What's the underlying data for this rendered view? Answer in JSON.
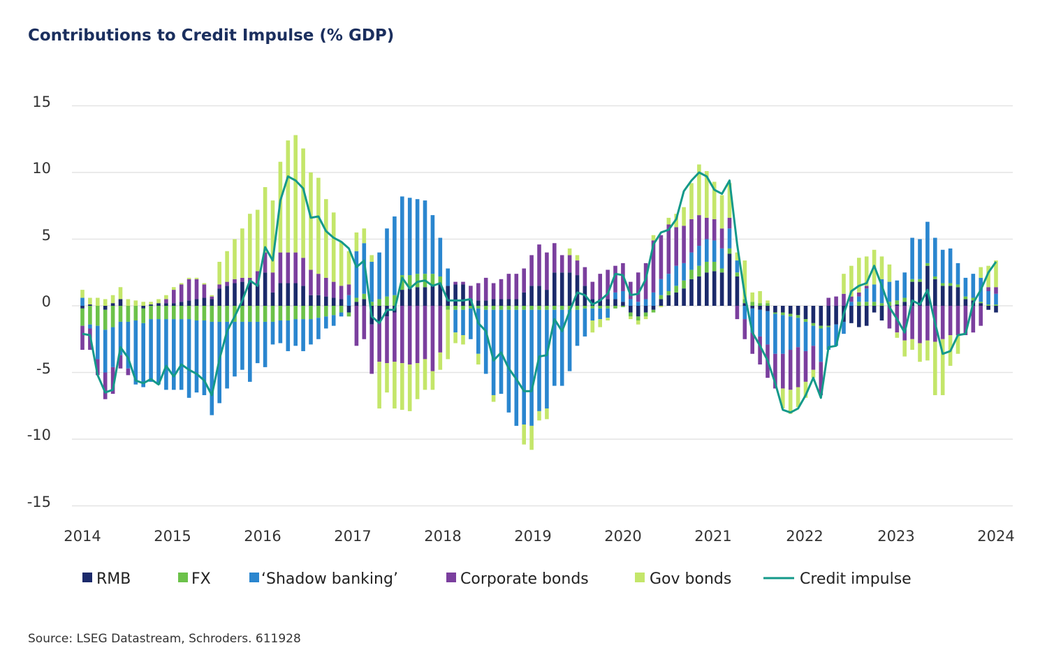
{
  "chart_data": {
    "type": "bar",
    "stacked": true,
    "title": "Contributions to Credit Impulse (% GDP)",
    "xlabel": "",
    "ylabel": "",
    "ylim": [
      -15,
      15
    ],
    "yticks": [
      "15",
      "10",
      "5",
      "0",
      "-5",
      "-10",
      "-15"
    ],
    "ytick_values": [
      15,
      10,
      5,
      0,
      -5,
      -10,
      -15
    ],
    "xticks": [
      "2014",
      "2015",
      "2016",
      "2017",
      "2018",
      "2019",
      "2020",
      "2021",
      "2022",
      "2023",
      "2024"
    ],
    "x_frequency": "monthly, Jan 2014 - Jan 2024",
    "grid": "horizontal",
    "legend_position": "bottom",
    "series": [
      {
        "name": "RMB",
        "kind": "bar",
        "color": "#1b2a6b",
        "values": [
          -0.2,
          0.1,
          0,
          -0.3,
          0.2,
          0.5,
          0,
          0,
          -0.2,
          0.1,
          0.2,
          0.2,
          0.2,
          0.3,
          0.4,
          0.5,
          0.6,
          0.5,
          1.3,
          1.5,
          1.7,
          1.8,
          1.8,
          1.6,
          2.5,
          1.0,
          1.7,
          1.7,
          1.7,
          1.5,
          0.8,
          0.8,
          0.7,
          0.6,
          0.5,
          -0.5,
          0.3,
          0.5,
          -1.4,
          -1.2,
          -0.8,
          -0.5,
          1.2,
          1.3,
          1.4,
          1.4,
          1.5,
          1.6,
          1.5,
          1.6,
          1.6,
          0.5,
          0.4,
          0.4,
          0.5,
          0.5,
          0.5,
          0.5,
          1.0,
          1.5,
          1.5,
          1.2,
          2.5,
          2.5,
          2.5,
          2.3,
          1.5,
          0.5,
          0.5,
          0.5,
          0.5,
          0.3,
          -0.5,
          -0.8,
          -0.5,
          -0.3,
          0.5,
          0.8,
          1.0,
          1.3,
          2.0,
          2.2,
          2.5,
          2.6,
          2.5,
          3.9,
          2.2,
          0.2,
          -0.2,
          -0.3,
          -0.4,
          -0.5,
          -0.5,
          -0.6,
          -0.7,
          -1.0,
          -1.3,
          -1.5,
          -1.5,
          -1.4,
          -1.2,
          -1.3,
          -1.6,
          -1.5,
          -0.5,
          -1.1,
          0,
          0.1,
          0.3,
          1.8,
          1.8,
          3.0,
          2.0,
          1.5,
          1.5,
          1.4,
          0.5,
          0.4,
          0.2,
          -0.3,
          -0.5
        ]
      },
      {
        "name": "FX",
        "kind": "bar",
        "color": "#6cc24a",
        "values": [
          -1.3,
          -1.4,
          -1.5,
          -1.5,
          -1.6,
          -1.2,
          -1.2,
          -1.1,
          -1.1,
          -1.0,
          -1.0,
          -1.0,
          -1.0,
          -1.0,
          -1.0,
          -1.1,
          -1.1,
          -1.2,
          -1.2,
          -1.2,
          -1.2,
          -1.2,
          -1.2,
          -1.2,
          -1.2,
          -1.2,
          -1.1,
          -1.1,
          -1.0,
          -1.0,
          -1.0,
          -0.9,
          -0.8,
          -0.7,
          -0.5,
          -0.3,
          0.3,
          0.4,
          0.3,
          0.5,
          0.7,
          0.8,
          1.1,
          1.0,
          1.0,
          1.0,
          0.9,
          0.6,
          -0.3,
          -0.3,
          -0.3,
          -0.2,
          -0.2,
          -0.3,
          -0.3,
          -0.3,
          -0.3,
          -0.3,
          -0.3,
          -0.3,
          -0.3,
          -0.3,
          -0.3,
          -0.3,
          -0.3,
          -0.3,
          -0.2,
          -0.2,
          -0.2,
          -0.2,
          -0.2,
          -0.1,
          -0.3,
          -0.3,
          -0.3,
          -0.2,
          0.3,
          0.3,
          0.5,
          0.6,
          0.7,
          0.8,
          0.8,
          0.7,
          0.3,
          0.4,
          0.3,
          0.3,
          0.3,
          0.2,
          0.2,
          -0.1,
          -0.2,
          -0.2,
          -0.2,
          -0.2,
          -0.2,
          -0.2,
          -0.1,
          0,
          0,
          0,
          0.3,
          0.3,
          0.3,
          0.2,
          0.3,
          0.3,
          0.3,
          0.2,
          0.2,
          0.2,
          0.2,
          0.2,
          0.2,
          0.2,
          0.2,
          0.2,
          0.1,
          0.1,
          0.1
        ]
      },
      {
        "name": "‘Shadow banking’",
        "kind": "bar",
        "color": "#2a86cf",
        "values": [
          0.6,
          -0.3,
          -2.5,
          -3.2,
          -3.0,
          -2.5,
          -3.5,
          -4.8,
          -4.8,
          -4.7,
          -4.9,
          -5.3,
          -5.3,
          -5.3,
          -5.9,
          -5.4,
          -5.6,
          -7.0,
          -6.1,
          -5.0,
          -4.1,
          -3.6,
          -4.5,
          -3.1,
          -3.4,
          -1.7,
          -1.7,
          -2.3,
          -2.0,
          -2.4,
          -1.9,
          -1.6,
          -0.9,
          -0.8,
          -0.3,
          0.8,
          3.5,
          3.8,
          3.0,
          3.5,
          5.1,
          5.9,
          5.9,
          5.8,
          5.6,
          5.5,
          4.4,
          2.9,
          1.3,
          -1.7,
          -1.9,
          -2.3,
          -3.4,
          -4.8,
          -6.4,
          -6.3,
          -7.7,
          -8.7,
          -8.6,
          -8.7,
          -7.6,
          -7.4,
          -5.7,
          -5.7,
          -4.6,
          -2.7,
          -2.1,
          -0.9,
          -0.8,
          -0.7,
          0.5,
          0.8,
          0.5,
          0.3,
          0.5,
          1.0,
          1.2,
          1.3,
          1.5,
          1.3,
          1.3,
          1.5,
          1.7,
          1.6,
          1.5,
          1.5,
          0.9,
          -1.0,
          -1.8,
          -2.0,
          -2.5,
          -3.0,
          -2.9,
          -2.5,
          -2.2,
          -2.2,
          -1.5,
          -2.5,
          -1.7,
          -1.6,
          -0.9,
          0.3,
          0.4,
          1.0,
          1.3,
          1.8,
          1.5,
          1.5,
          1.9,
          3.1,
          3.0,
          3.1,
          2.9,
          2.5,
          2.6,
          1.6,
          1.4,
          1.8,
          1.8,
          1.0,
          0.8
        ]
      },
      {
        "name": "Corporate bonds",
        "kind": "bar",
        "color": "#7b3f9e",
        "values": [
          -1.8,
          -1.6,
          -1.2,
          -2.0,
          -2.0,
          -1.0,
          -0.5,
          0,
          0,
          0,
          0,
          0.3,
          1.0,
          1.3,
          1.6,
          1.5,
          1.0,
          0.2,
          0.3,
          0.3,
          0.3,
          0.3,
          0.3,
          1.0,
          1.5,
          1.5,
          2.3,
          2.3,
          2.3,
          2.1,
          1.9,
          1.6,
          1.4,
          1.2,
          1.0,
          0.8,
          -3.0,
          -2.5,
          -3.7,
          -3.0,
          -3.5,
          -3.7,
          -4.3,
          -4.4,
          -4.3,
          -4.0,
          -4.9,
          -3.5,
          0,
          0.2,
          0.2,
          1.0,
          1.3,
          1.7,
          1.2,
          1.5,
          1.9,
          1.9,
          1.8,
          2.3,
          3.1,
          2.8,
          2.2,
          1.3,
          1.3,
          1.1,
          1.4,
          1.3,
          1.9,
          2.2,
          2.0,
          2.1,
          1.3,
          2.2,
          2.7,
          3.9,
          3.3,
          3.7,
          2.9,
          2.8,
          2.5,
          2.3,
          1.6,
          1.6,
          1.5,
          0.8,
          -1.0,
          -1.5,
          -1.6,
          -2.1,
          -2.5,
          -2.6,
          -2.6,
          -3.0,
          -3.0,
          -2.3,
          -1.8,
          -2.5,
          0.6,
          0.7,
          0.9,
          0.4,
          0.3,
          0.2,
          0,
          0,
          -1.7,
          -2.0,
          -2.6,
          -2.5,
          -2.8,
          -2.6,
          -2.7,
          -2.5,
          -2.2,
          -2.2,
          -2.2,
          -2.0,
          -1.5,
          0.3,
          0.5
        ]
      },
      {
        "name": "Gov bonds",
        "kind": "bar",
        "color": "#c4e66a",
        "values": [
          0.6,
          0.5,
          0.6,
          0.5,
          0.6,
          0.9,
          0.5,
          0.4,
          0.3,
          0.2,
          0.3,
          0.3,
          0.2,
          0.1,
          0.1,
          0.1,
          0.1,
          0.1,
          1.7,
          2.3,
          3.0,
          3.7,
          4.8,
          4.6,
          4.9,
          5.4,
          6.8,
          8.4,
          8.8,
          8.2,
          7.3,
          7.2,
          5.9,
          5.2,
          3.3,
          2.5,
          1.4,
          1.1,
          0.5,
          -3.5,
          -2.2,
          -3.5,
          -3.5,
          -3.5,
          -2.7,
          -2.3,
          -1.4,
          -1.3,
          -3.7,
          -0.8,
          -0.7,
          0,
          -0.8,
          0,
          -0.5,
          0,
          0,
          0,
          -1.5,
          -1.8,
          -0.7,
          -0.8,
          0,
          0,
          0.5,
          0.4,
          0,
          -0.9,
          -0.6,
          -0.2,
          0,
          0,
          -0.2,
          -0.3,
          -0.2,
          0.4,
          -0.1,
          0.5,
          1.0,
          1.4,
          2.7,
          3.8,
          3.5,
          2.8,
          2.5,
          2.6,
          0.6,
          2.9,
          0.7,
          0.9,
          0.2,
          0,
          -1.5,
          -1.8,
          -1.5,
          -1.2,
          -0.6,
          0,
          0,
          0,
          1.5,
          2.3,
          2.6,
          2.2,
          2.6,
          1.7,
          1.3,
          -0.4,
          -1.2,
          -0.8,
          -1.4,
          -1.5,
          -4.0,
          -4.2,
          -2.3,
          -1.4,
          0,
          0,
          0.8,
          1.6,
          2.0
        ]
      },
      {
        "name": "Credit impulse",
        "kind": "line",
        "color": "#14998a",
        "values": [
          -2.1,
          -2.2,
          -5.2,
          -6.5,
          -6.3,
          -3.1,
          -3.9,
          -5.6,
          -5.8,
          -5.5,
          -5.9,
          -4.5,
          -5.3,
          -4.4,
          -4.8,
          -5.1,
          -5.6,
          -6.7,
          -4.0,
          -1.9,
          -0.8,
          0.4,
          1.9,
          1.5,
          4.4,
          3.4,
          7.9,
          9.7,
          9.4,
          8.8,
          6.6,
          6.7,
          5.6,
          5.1,
          4.8,
          4.3,
          2.9,
          3.4,
          -0.8,
          -1.3,
          -0.3,
          -0.3,
          2.1,
          1.3,
          1.8,
          1.9,
          1.5,
          1.7,
          0.4,
          0.4,
          0.4,
          0.5,
          -1.3,
          -1.9,
          -4.1,
          -3.5,
          -4.7,
          -5.5,
          -6.4,
          -6.4,
          -3.8,
          -3.7,
          -1.0,
          -1.9,
          -0.4,
          1.0,
          0.8,
          0.1,
          0.4,
          0.9,
          2.4,
          2.3,
          0.8,
          0.9,
          2.0,
          4.6,
          5.5,
          5.7,
          6.5,
          8.6,
          9.4,
          10.0,
          9.7,
          8.7,
          8.4,
          9.4,
          4.6,
          0.8,
          -2.0,
          -3.0,
          -4.1,
          -5.8,
          -7.8,
          -8.0,
          -7.7,
          -6.7,
          -5.4,
          -6.9,
          -3.1,
          -3.0,
          -0.6,
          1.1,
          1.5,
          1.7,
          3.0,
          1.5,
          -0.1,
          -1.0,
          -2.0,
          0.4,
          0.1,
          1.2,
          -1.3,
          -3.6,
          -3.4,
          -2.2,
          -2.1,
          0.2,
          1.2,
          2.5,
          3.3
        ]
      }
    ],
    "source": "Source: LSEG Datastream, Schroders. 611928"
  }
}
